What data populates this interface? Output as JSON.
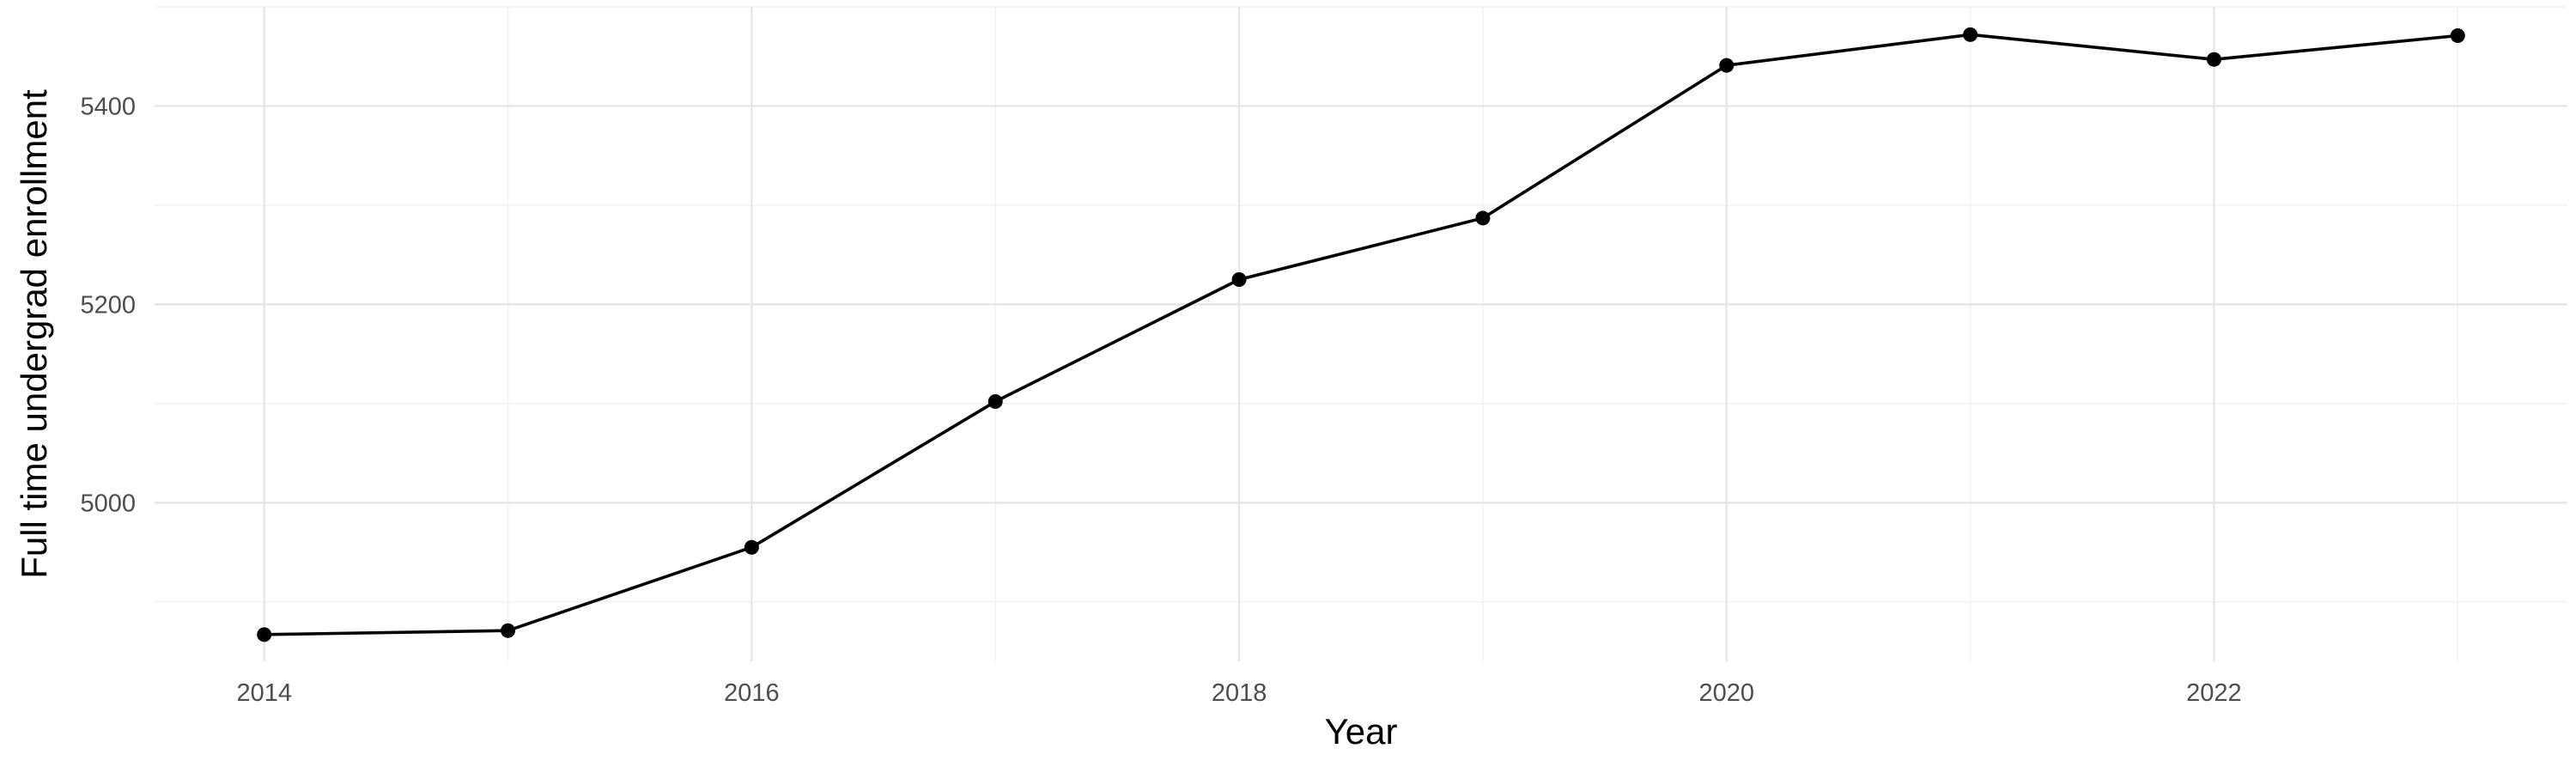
{
  "chart_data": {
    "type": "line",
    "title": "",
    "xlabel": "Year",
    "ylabel": "Full time undergrad enrollment",
    "xlim": [
      2013.55,
      2023.45
    ],
    "ylim": [
      4840,
      5500
    ],
    "x_ticks": [
      2014,
      2016,
      2018,
      2020,
      2022
    ],
    "x_tick_labels": [
      "2014",
      "2016",
      "2018",
      "2020",
      "2022"
    ],
    "x_minor_ticks": [
      2015,
      2017,
      2019,
      2021,
      2023
    ],
    "y_ticks": [
      5000,
      5200,
      5400
    ],
    "y_tick_labels": [
      "5000",
      "5200",
      "5400"
    ],
    "y_minor_ticks": [
      4900,
      5100,
      5300,
      5500
    ],
    "grid": true,
    "legend": "none",
    "x": [
      2014,
      2015,
      2016,
      2017,
      2018,
      2019,
      2020,
      2021,
      2022,
      2023
    ],
    "series": [
      {
        "color": "#000000",
        "values": [
          4867,
          4871,
          4955,
          5102,
          5225,
          5287,
          5441,
          5472,
          5447,
          5471
        ]
      }
    ]
  }
}
